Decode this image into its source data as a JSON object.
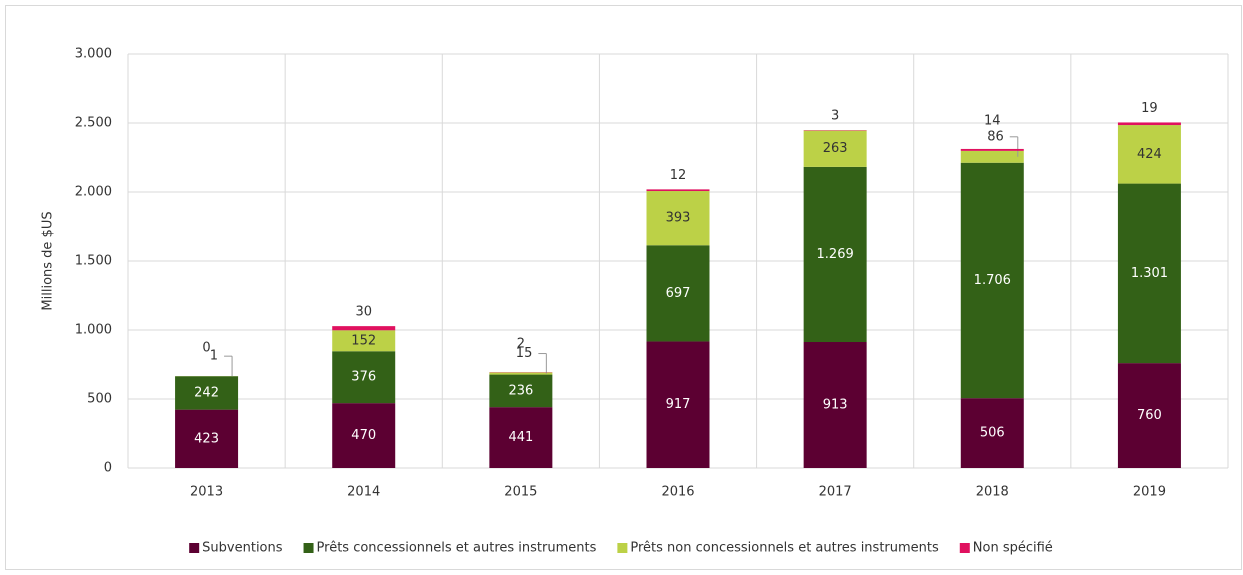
{
  "chart_data": {
    "type": "stacked_bar",
    "y_label": "Millions de $US",
    "categories": [
      "2013",
      "2014",
      "2015",
      "2016",
      "2017",
      "2018",
      "2019"
    ],
    "series": [
      {
        "name": "Subventions",
        "color": "#5c0032",
        "values": [
          423,
          470,
          441,
          917,
          913,
          506,
          760
        ]
      },
      {
        "name": "Prêts concessionnels et autres instruments",
        "color": "#336117",
        "values": [
          242,
          376,
          236,
          697,
          1269,
          1706,
          1301
        ],
        "value_labels": [
          "242",
          "376",
          "236",
          "697",
          "1.269",
          "1.706",
          "1.301"
        ]
      },
      {
        "name": "Prêts non concessionnels et autres instruments",
        "color": "#bcd147",
        "values": [
          1,
          152,
          15,
          393,
          263,
          86,
          424
        ]
      },
      {
        "name": "Non spécifié",
        "color": "#e0115f",
        "values": [
          0,
          30,
          2,
          12,
          3,
          14,
          19
        ]
      }
    ],
    "ylim": [
      0,
      3000
    ],
    "yticks": [
      0,
      500,
      {
        "value": 1000,
        "label": "1.000"
      },
      {
        "value": 1500,
        "label": "1.500"
      },
      {
        "value": 2000,
        "label": "2.000"
      },
      {
        "value": 2500,
        "label": "2.500"
      },
      {
        "value": 3000,
        "label": "3.000"
      }
    ],
    "grid": true,
    "legend": "bottom"
  }
}
